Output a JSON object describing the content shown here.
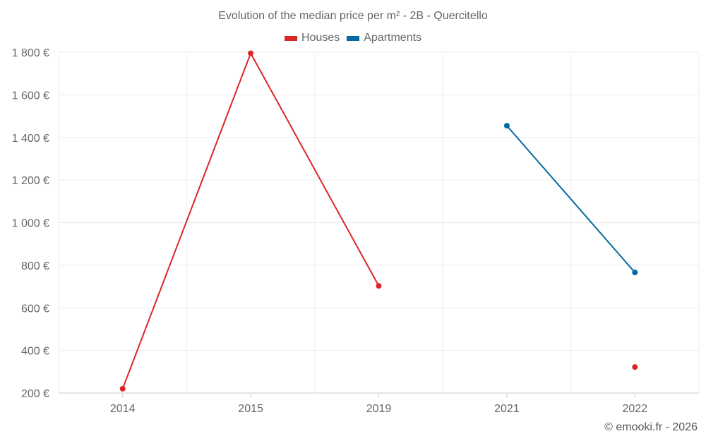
{
  "chart_data": {
    "type": "line",
    "title": "Evolution of the median price per m² - 2B - Quercitello",
    "categories": [
      "2014",
      "2015",
      "2019",
      "2021",
      "2022"
    ],
    "series": [
      {
        "name": "Houses",
        "color": "#dc2626",
        "values": [
          220,
          1795,
          703,
          null,
          322
        ]
      },
      {
        "name": "Apartments",
        "color": "#0369a1",
        "values": [
          null,
          null,
          null,
          1455,
          766
        ]
      }
    ],
    "ylim": [
      200,
      1800
    ],
    "yticks": [
      200,
      400,
      600,
      800,
      1000,
      1200,
      1400,
      1600,
      1800
    ],
    "ytick_labels": [
      "200 €",
      "400 €",
      "600 €",
      "800 €",
      "1 000 €",
      "1 200 €",
      "1 400 €",
      "1 600 €",
      "1 800 €"
    ],
    "grid": true,
    "legend_position": "top-center",
    "xlabel": "",
    "ylabel": ""
  },
  "credit": "© emooki.fr - 2026"
}
